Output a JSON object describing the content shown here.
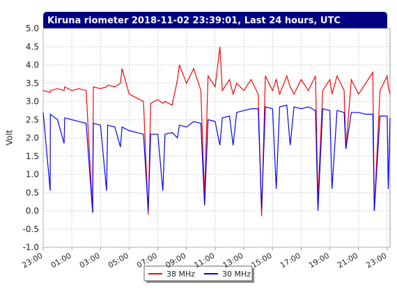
{
  "chart_data": {
    "type": "line",
    "title": "Kiruna riometer 2018-11-02 23:39:01, Last 24 hours, UTC",
    "y_label": "Volt",
    "x": [
      0,
      0.49,
      0.5,
      1,
      1.46,
      1.5,
      2,
      2.5,
      3,
      3.45,
      3.5,
      4,
      4.42,
      4.5,
      5,
      5.39,
      5.5,
      6,
      6.5,
      7,
      7.33,
      7.5,
      8,
      8.35,
      8.5,
      9,
      9.37,
      9.5,
      10,
      10.5,
      11,
      11.26,
      11.5,
      12,
      12.33,
      12.5,
      13,
      13.25,
      13.5,
      14,
      14.5,
      15,
      15.24,
      15.5,
      16,
      16.26,
      16.5,
      17,
      17.23,
      17.5,
      18,
      18.5,
      19,
      19.17,
      19.5,
      20,
      20.15,
      20.5,
      21,
      21.12,
      21.5,
      22,
      22.5,
      23,
      23.1,
      23.5,
      24,
      24.08,
      24.2
    ],
    "series": [
      {
        "name": "38 MHz",
        "color": "#ff0000",
        "values": [
          3.3,
          3.25,
          3.3,
          3.35,
          3.3,
          3.4,
          3.3,
          3.35,
          3.3,
          -0.05,
          3.4,
          3.35,
          3.4,
          3.45,
          3.4,
          3.5,
          3.9,
          3.2,
          3.1,
          3.0,
          -0.1,
          2.95,
          3.05,
          2.95,
          3.0,
          2.9,
          3.6,
          4.0,
          3.5,
          3.9,
          3.3,
          0.4,
          3.7,
          3.4,
          4.5,
          3.3,
          3.6,
          3.2,
          3.5,
          3.3,
          3.6,
          3.2,
          -0.15,
          3.7,
          3.3,
          3.6,
          3.2,
          3.7,
          3.4,
          3.2,
          3.6,
          3.3,
          3.7,
          0.3,
          3.3,
          3.6,
          3.2,
          3.7,
          3.3,
          1.7,
          3.6,
          3.2,
          3.5,
          3.8,
          0.0,
          3.3,
          3.7,
          3.4,
          3.2
        ]
      },
      {
        "name": "30 MHz",
        "color": "#0000ff",
        "values": [
          2.7,
          0.55,
          2.65,
          2.5,
          1.85,
          2.55,
          2.5,
          2.45,
          2.4,
          -0.05,
          2.4,
          2.35,
          0.55,
          2.35,
          2.3,
          1.75,
          2.3,
          2.2,
          2.15,
          2.1,
          0.0,
          2.1,
          2.1,
          0.55,
          2.1,
          2.15,
          2.0,
          2.35,
          2.3,
          2.45,
          2.4,
          0.15,
          2.5,
          2.45,
          1.8,
          2.55,
          2.6,
          1.8,
          2.7,
          2.75,
          2.8,
          2.8,
          0.05,
          2.85,
          2.8,
          0.6,
          2.85,
          2.9,
          1.8,
          2.85,
          2.8,
          2.85,
          2.75,
          0.0,
          2.8,
          2.75,
          0.6,
          2.75,
          2.7,
          1.7,
          2.7,
          2.7,
          2.65,
          2.65,
          0.0,
          2.6,
          2.6,
          0.6,
          2.55
        ]
      }
    ],
    "xlim": [
      0,
      24.2
    ],
    "xticks": [
      {
        "value": 0,
        "label": "23:00"
      },
      {
        "value": 2,
        "label": "01:00"
      },
      {
        "value": 4,
        "label": "03:00"
      },
      {
        "value": 6,
        "label": "05:00"
      },
      {
        "value": 8,
        "label": "07:00"
      },
      {
        "value": 10,
        "label": "09:00"
      },
      {
        "value": 12,
        "label": "11:00"
      },
      {
        "value": 14,
        "label": "13:00"
      },
      {
        "value": 16,
        "label": "15:00"
      },
      {
        "value": 18,
        "label": "17:00"
      },
      {
        "value": 20,
        "label": "19:00"
      },
      {
        "value": 22,
        "label": "21:00"
      },
      {
        "value": 24,
        "label": "23:00"
      }
    ],
    "ylim": [
      -1,
      5
    ],
    "yticks": [
      {
        "value": 5,
        "label": "5.0"
      },
      4.5,
      {
        "value": 4,
        "label": "4.0"
      },
      3.5,
      {
        "value": 3,
        "label": "3.0"
      },
      2.5,
      {
        "value": 2,
        "label": "2.0"
      },
      1.5,
      {
        "value": 1,
        "label": "1.0"
      },
      0.5,
      {
        "value": 0,
        "label": "0.0"
      },
      -0.5,
      {
        "value": -1,
        "label": "-1.0"
      }
    ],
    "grid": true,
    "legend": "bottom"
  }
}
